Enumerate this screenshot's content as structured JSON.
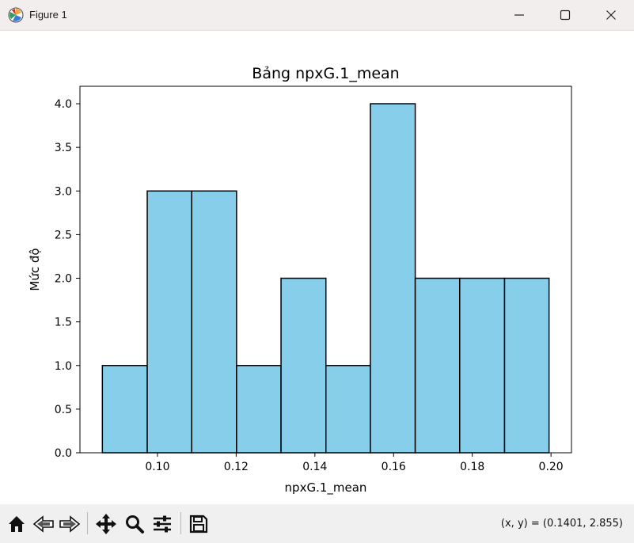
{
  "window": {
    "title": "Figure 1",
    "icon": "matplotlib-icon",
    "controls": [
      "minimize-icon",
      "maximize-icon",
      "close-icon"
    ]
  },
  "toolbar": {
    "tools": [
      "home-icon",
      "back-icon",
      "forward-icon",
      "pan-icon",
      "zoom-icon",
      "configure-subplots-icon",
      "save-icon"
    ],
    "coords_text": "(x, y) = (0.1401, 2.855)"
  },
  "chart_data": {
    "type": "bar",
    "title": "Bảng npxG.1_mean",
    "xlabel": "npxG.1_mean",
    "ylabel": "Mức độ",
    "bins": [
      {
        "x0": 0.086,
        "x1": 0.0974,
        "value": 1
      },
      {
        "x0": 0.0974,
        "x1": 0.1087,
        "value": 3
      },
      {
        "x0": 0.1087,
        "x1": 0.1201,
        "value": 3
      },
      {
        "x0": 0.1201,
        "x1": 0.1314,
        "value": 1
      },
      {
        "x0": 0.1314,
        "x1": 0.1428,
        "value": 2
      },
      {
        "x0": 0.1428,
        "x1": 0.1541,
        "value": 1
      },
      {
        "x0": 0.1541,
        "x1": 0.1655,
        "value": 4
      },
      {
        "x0": 0.1655,
        "x1": 0.1768,
        "value": 2
      },
      {
        "x0": 0.1768,
        "x1": 0.1882,
        "value": 2
      },
      {
        "x0": 0.1882,
        "x1": 0.1995,
        "value": 2
      }
    ],
    "xlim": [
      0.0803,
      0.2052
    ],
    "ylim": [
      0,
      4.2
    ],
    "xticks": [
      "0.10",
      "0.12",
      "0.14",
      "0.16",
      "0.18",
      "0.20"
    ],
    "yticks": [
      "0.0",
      "0.5",
      "1.0",
      "1.5",
      "2.0",
      "2.5",
      "3.0",
      "3.5",
      "4.0"
    ],
    "bar_color": "#87ceeb",
    "edge_color": "#000000",
    "grid": false,
    "legend": "none"
  }
}
